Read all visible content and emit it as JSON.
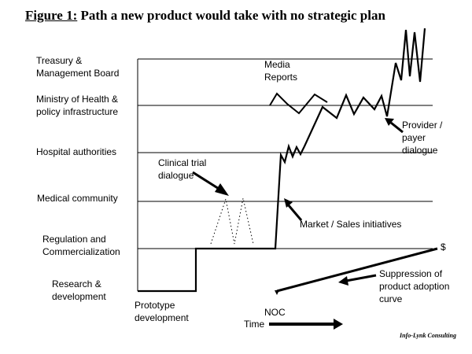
{
  "title": {
    "figure_number": "Figure 1:",
    "text": "Path a new product would take with no strategic plan"
  },
  "levels": [
    "Treasury &\nManagement Board",
    "Ministry of Health &\npolicy infrastructure",
    "Hospital authorities",
    "Medical community",
    "Regulation and\nCommercialization",
    "Research &\ndevelopment"
  ],
  "annotations": {
    "media_reports": "Media\nReports",
    "clinical_trial": "Clinical trial\ndialogue",
    "provider_payer": "Provider /\npayer\ndialogue",
    "market_sales": "Market / Sales initiatives",
    "dollar": "$",
    "suppression": "Suppression of\nproduct adoption\ncurve",
    "prototype": "Prototype\ndevelopment",
    "noc": "NOC",
    "time": "Time"
  },
  "credit": "Info-Lynk Consulting"
}
